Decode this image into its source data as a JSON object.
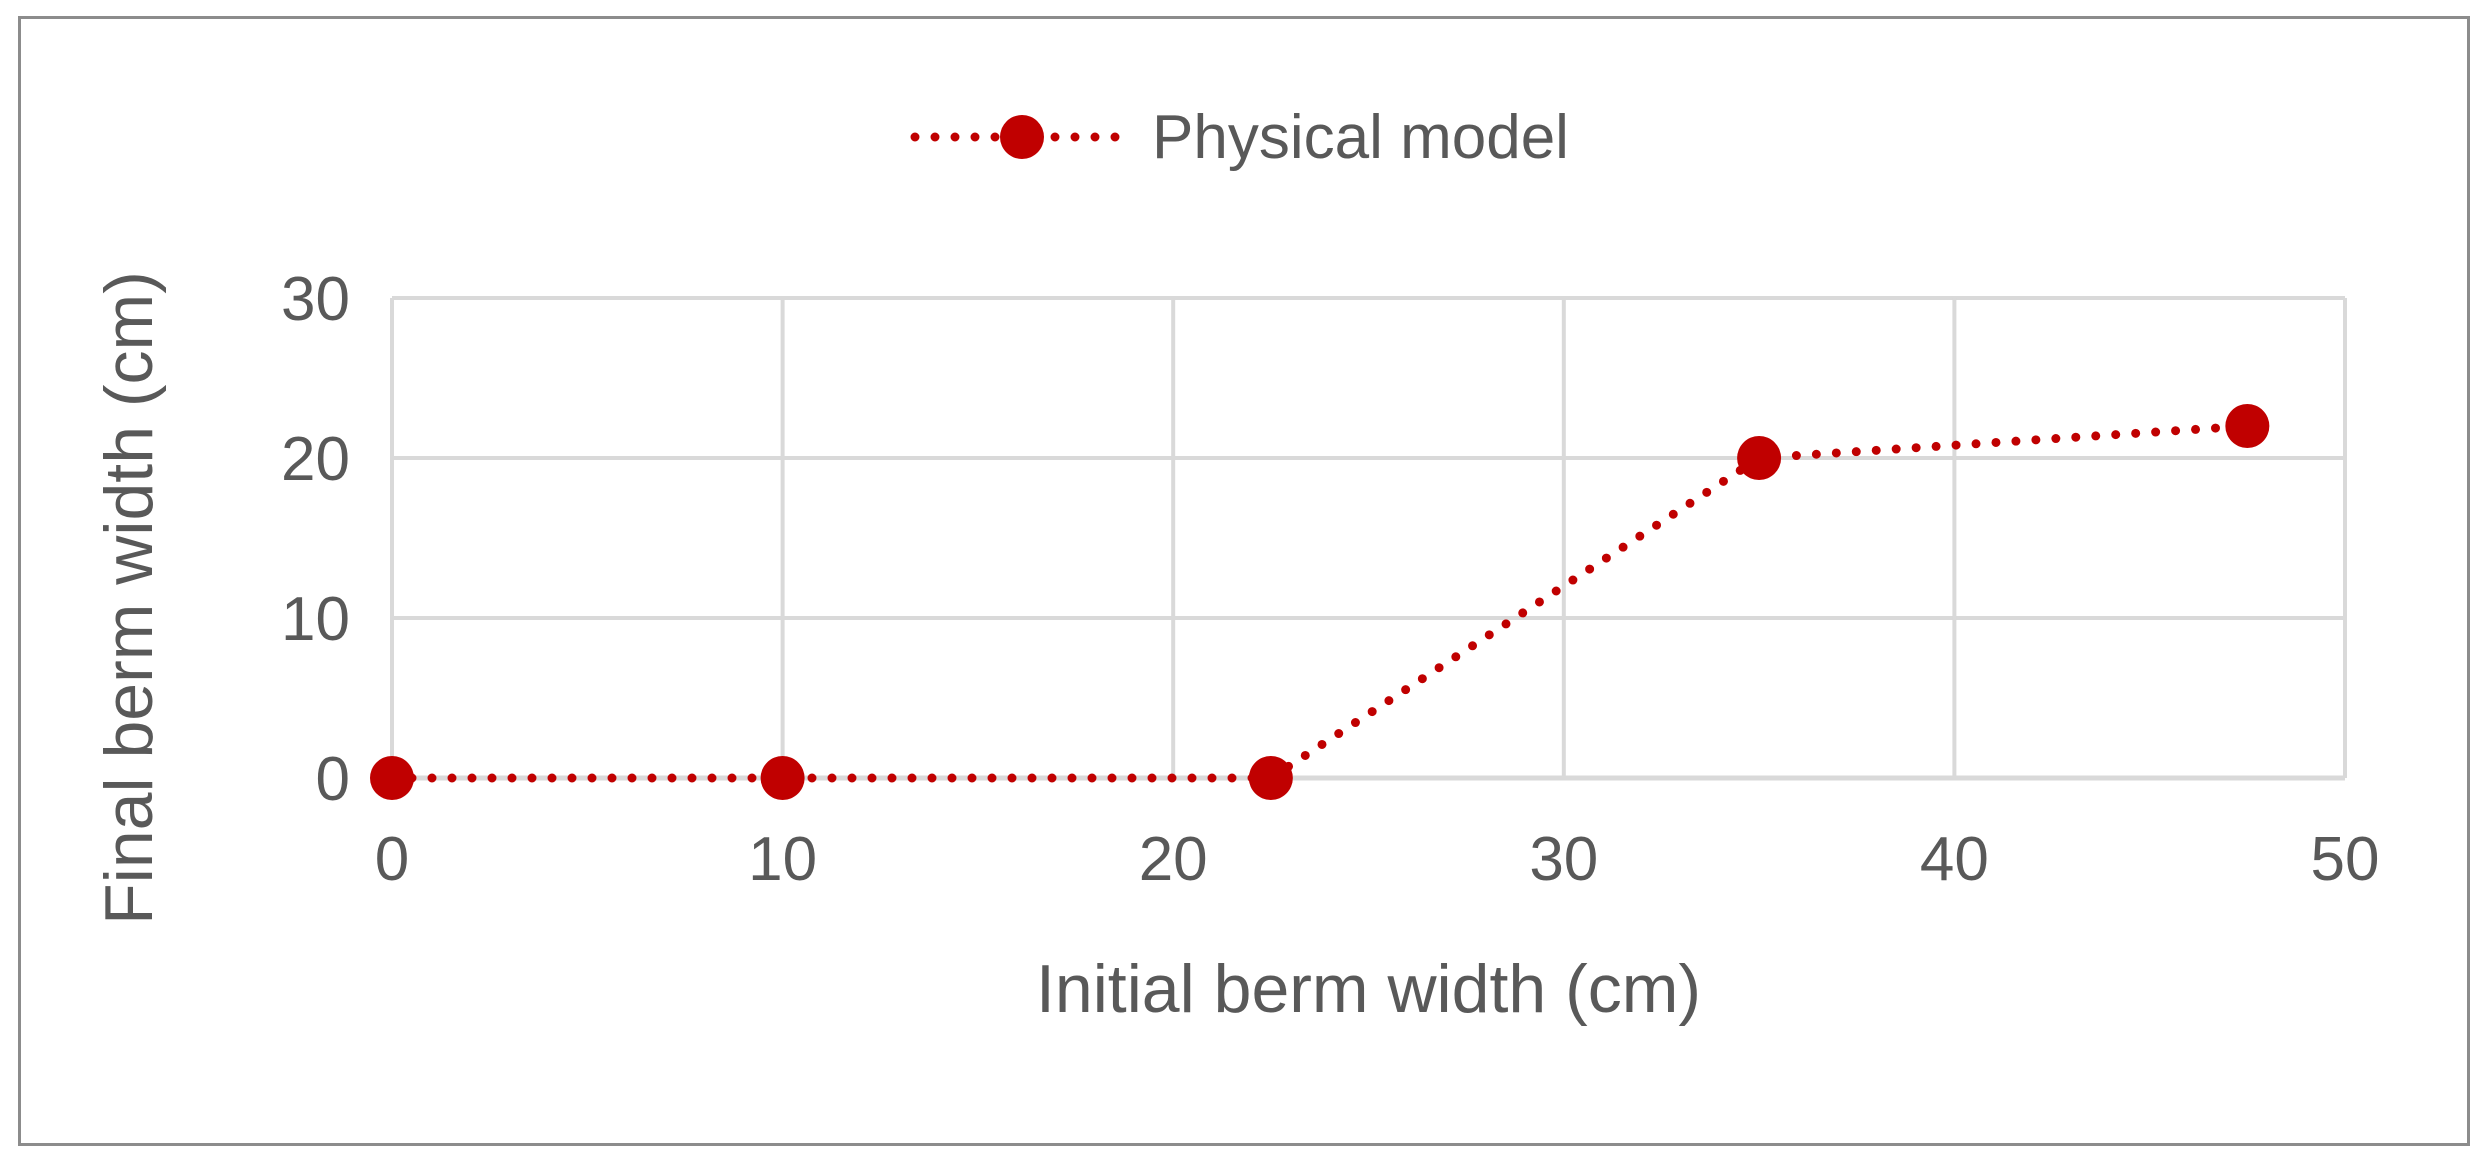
{
  "chart_data": {
    "type": "line",
    "title": "",
    "xlabel": "Initial berm width (cm)",
    "ylabel": "Final berm width  (cm)",
    "xlim": [
      0,
      50
    ],
    "ylim": [
      0,
      30
    ],
    "x_ticks": [
      0,
      10,
      20,
      30,
      40,
      50
    ],
    "y_ticks": [
      0,
      10,
      20,
      30
    ],
    "x_tick_labels": [
      "0",
      "10",
      "20",
      "30",
      "40",
      "50"
    ],
    "y_tick_labels": [
      "0",
      "10",
      "20",
      "30"
    ],
    "grid": true,
    "legend_position": "top-center",
    "series": [
      {
        "name": "Physical model",
        "color": "#c00000",
        "line_style": "dotted",
        "marker": "circle",
        "x": [
          0,
          10,
          22.5,
          35,
          47.5
        ],
        "y": [
          0,
          0,
          0,
          20,
          22
        ]
      }
    ]
  }
}
